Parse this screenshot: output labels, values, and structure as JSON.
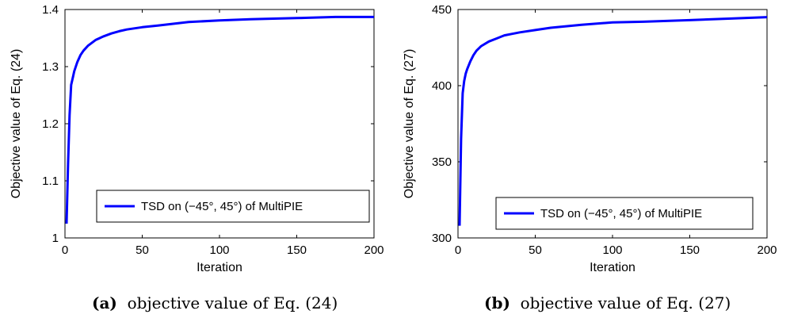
{
  "chart_data": [
    {
      "type": "line",
      "xlabel": "Iteration",
      "ylabel": "Objective value of Eq. (24)",
      "xlim": [
        0,
        200
      ],
      "ylim": [
        1.0,
        1.4
      ],
      "xticks": [
        "0",
        "50",
        "100",
        "150",
        "200"
      ],
      "yticks": [
        "1",
        "1.1",
        "1.2",
        "1.3",
        "1.4"
      ],
      "xtick_values": [
        0,
        50,
        100,
        150,
        200
      ],
      "ytick_values": [
        1.0,
        1.1,
        1.2,
        1.3,
        1.4
      ],
      "legend_position": "lower-right",
      "series": [
        {
          "name": "TSD on (−45°, 45°) of MultiPIE",
          "color": "#0000ff",
          "x": [
            1,
            2,
            3,
            4,
            5,
            6,
            8,
            10,
            12,
            15,
            20,
            25,
            30,
            35,
            40,
            50,
            60,
            70,
            80,
            100,
            120,
            150,
            175,
            200
          ],
          "y": [
            1.025,
            1.13,
            1.215,
            1.268,
            1.28,
            1.292,
            1.308,
            1.32,
            1.328,
            1.337,
            1.347,
            1.353,
            1.358,
            1.362,
            1.365,
            1.369,
            1.372,
            1.375,
            1.378,
            1.381,
            1.383,
            1.385,
            1.387,
            1.387
          ]
        }
      ]
    },
    {
      "type": "line",
      "xlabel": "Iteration",
      "ylabel": "Objective value of Eq. (27)",
      "xlim": [
        0,
        200
      ],
      "ylim": [
        300,
        450
      ],
      "xticks": [
        "0",
        "50",
        "100",
        "150",
        "200"
      ],
      "yticks": [
        "300",
        "350",
        "400",
        "450"
      ],
      "xtick_values": [
        0,
        50,
        100,
        150,
        200
      ],
      "ytick_values": [
        300,
        350,
        400,
        450
      ],
      "legend_position": "lower-right",
      "series": [
        {
          "name": "TSD on (−45°, 45°) of MultiPIE",
          "color": "#0000ff",
          "x": [
            1,
            2,
            3,
            4,
            5,
            6,
            8,
            10,
            12,
            15,
            20,
            25,
            30,
            35,
            40,
            50,
            60,
            70,
            80,
            100,
            120,
            150,
            175,
            200
          ],
          "y": [
            308,
            365,
            395,
            403,
            408,
            411,
            416,
            420,
            423,
            426,
            429,
            431,
            433,
            434,
            435,
            436.5,
            438,
            439,
            440,
            441.5,
            442,
            443,
            444,
            445
          ]
        }
      ]
    }
  ],
  "captions": {
    "a": {
      "label": "(a)",
      "text": "objective value of Eq. (24)"
    },
    "b": {
      "label": "(b)",
      "text": "objective value of Eq. (27)"
    }
  }
}
